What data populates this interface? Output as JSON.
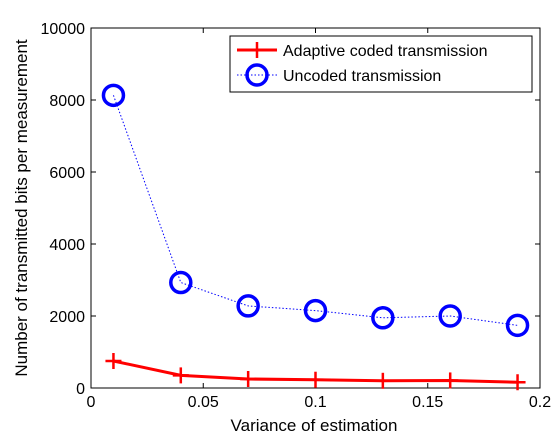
{
  "chart_data": {
    "type": "line",
    "title": "",
    "xlabel": "Variance of estimation",
    "ylabel": "Number of transmitted bits per measurement",
    "xlim": [
      0,
      0.2
    ],
    "ylim": [
      0,
      10000
    ],
    "xticks": [
      0,
      0.05,
      0.1,
      0.15,
      0.2
    ],
    "xtick_labels": [
      "0",
      "0.05",
      "0.1",
      "0.15",
      "0.2"
    ],
    "yticks": [
      0,
      2000,
      4000,
      6000,
      8000,
      10000
    ],
    "ytick_labels": [
      "0",
      "2000",
      "4000",
      "6000",
      "8000",
      "10000"
    ],
    "grid": false,
    "legend_position": "top-right",
    "series": [
      {
        "name": "Adaptive coded transmission",
        "color": "#ff0000",
        "line_style": "solid",
        "marker": "plus",
        "x": [
          0.01,
          0.04,
          0.07,
          0.1,
          0.13,
          0.16,
          0.19
        ],
        "y": [
          750,
          350,
          250,
          230,
          200,
          210,
          160
        ]
      },
      {
        "name": "Uncoded transmission",
        "color": "#0000ff",
        "line_style": "dotted",
        "marker": "circle",
        "x": [
          0.01,
          0.04,
          0.07,
          0.1,
          0.13,
          0.16,
          0.19
        ],
        "y": [
          8130,
          2930,
          2280,
          2150,
          1950,
          2000,
          1740
        ]
      }
    ]
  }
}
